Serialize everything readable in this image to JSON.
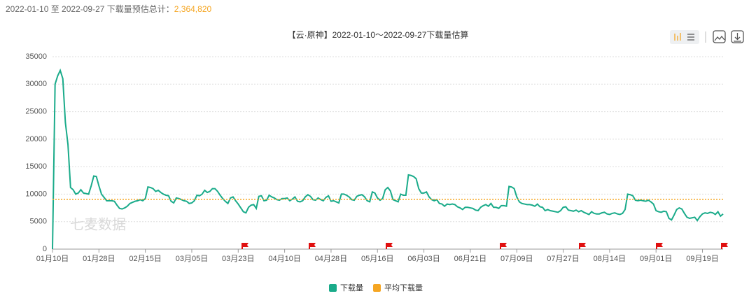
{
  "header": {
    "range_text": "2022-01-10 至 2022-09-27 下载量预估总计：",
    "total": "2,364,820"
  },
  "chart_data": {
    "type": "line",
    "title": "【云·原神】2022-01-10～2022-09-27下载量估算",
    "watermark": "七麦数据",
    "categories": [
      "01月10日",
      null,
      null,
      null,
      null,
      null,
      null,
      null,
      null,
      null,
      null,
      null,
      null,
      null,
      null,
      null,
      null,
      null,
      "01月28日",
      null,
      null,
      null,
      null,
      null,
      null,
      null,
      null,
      null,
      null,
      null,
      null,
      null,
      null,
      null,
      null,
      null,
      "02月15日",
      null,
      null,
      null,
      null,
      null,
      null,
      null,
      null,
      null,
      null,
      null,
      null,
      null,
      null,
      null,
      null,
      null,
      "03月05日",
      null,
      null,
      null,
      null,
      null,
      null,
      null,
      null,
      null,
      null,
      null,
      null,
      null,
      null,
      null,
      null,
      null,
      "03月23日",
      null,
      null,
      null,
      null,
      null,
      null,
      null,
      null,
      null,
      null,
      null,
      null,
      null,
      null,
      null,
      null,
      null,
      "04月10日",
      null,
      null,
      null,
      null,
      null,
      null,
      null,
      null,
      null,
      null,
      null,
      null,
      null,
      null,
      null,
      null,
      null,
      "04月28日",
      null,
      null,
      null,
      null,
      null,
      null,
      null,
      null,
      null,
      null,
      null,
      null,
      null,
      null,
      null,
      null,
      null,
      "05月16日",
      null,
      null,
      null,
      null,
      null,
      null,
      null,
      null,
      null,
      null,
      null,
      null,
      null,
      null,
      null,
      null,
      null,
      "06月03日",
      null,
      null,
      null,
      null,
      null,
      null,
      null,
      null,
      null,
      null,
      null,
      null,
      null,
      null,
      null,
      null,
      null,
      "06月21日",
      null,
      null,
      null,
      null,
      null,
      null,
      null,
      null,
      null,
      null,
      null,
      null,
      null,
      null,
      null,
      null,
      null,
      "07月09日",
      null,
      null,
      null,
      null,
      null,
      null,
      null,
      null,
      null,
      null,
      null,
      null,
      null,
      null,
      null,
      null,
      null,
      "07月27日",
      null,
      null,
      null,
      null,
      null,
      null,
      null,
      null,
      null,
      null,
      null,
      null,
      null,
      null,
      null,
      null,
      null,
      "08月14日",
      null,
      null,
      null,
      null,
      null,
      null,
      null,
      null,
      null,
      null,
      null,
      null,
      null,
      null,
      null,
      null,
      null,
      "09月01日",
      null,
      null,
      null,
      null,
      null,
      null,
      null,
      null,
      null,
      null,
      null,
      null,
      null,
      null,
      null,
      null,
      null,
      "09月19日",
      null,
      null,
      null,
      null,
      null,
      null,
      null,
      null
    ],
    "series": [
      {
        "name": "下载量",
        "color": "#1aab8a",
        "values": [
          0,
          30000,
          31500,
          32500,
          31000,
          23000,
          19000,
          11200,
          10800,
          10000,
          10200,
          10800,
          10200,
          10100,
          10000,
          11500,
          13300,
          13200,
          11500,
          10000,
          9400,
          8800,
          8800,
          8800,
          8700,
          8000,
          7400,
          7300,
          7500,
          7800,
          8300,
          8500,
          8700,
          8800,
          9000,
          8800,
          9200,
          11300,
          11200,
          11000,
          10500,
          10700,
          10300,
          10000,
          9800,
          9700,
          8700,
          8400,
          9300,
          9200,
          9000,
          8800,
          8700,
          8300,
          8400,
          8800,
          9800,
          9700,
          10000,
          10700,
          10300,
          10500,
          11000,
          11000,
          10500,
          9800,
          9200,
          8700,
          8300,
          9300,
          9500,
          8800,
          8200,
          7500,
          6800,
          6600,
          7600,
          8000,
          8100,
          7400,
          9600,
          9700,
          8800,
          8900,
          9800,
          9500,
          9300,
          9000,
          8900,
          9200,
          9200,
          9300,
          8800,
          9100,
          9500,
          8700,
          8600,
          8800,
          9500,
          9900,
          9600,
          9000,
          8900,
          9300,
          9000,
          8800,
          9400,
          9700,
          8700,
          8800,
          8600,
          8400,
          10000,
          10000,
          9800,
          9500,
          9000,
          8900,
          9600,
          9800,
          9900,
          9500,
          8800,
          8600,
          10400,
          10200,
          9300,
          8900,
          9200,
          10800,
          11200,
          10600,
          9000,
          8800,
          8600,
          10000,
          9800,
          9800,
          13500,
          13400,
          13200,
          12800,
          11000,
          10200,
          10200,
          10400,
          9500,
          9000,
          8800,
          9000,
          8300,
          8200,
          7800,
          8200,
          8100,
          8200,
          8100,
          7700,
          7500,
          7200,
          7600,
          7600,
          7500,
          7400,
          7100,
          7000,
          7600,
          7900,
          8100,
          7800,
          8300,
          7600,
          7600,
          7400,
          7900,
          7900,
          7800,
          11400,
          11300,
          11000,
          9500,
          8600,
          8300,
          8200,
          8100,
          8100,
          8000,
          7800,
          8200,
          7700,
          7600,
          7000,
          7200,
          7000,
          6900,
          6800,
          6700,
          7000,
          7600,
          7700,
          7100,
          7000,
          6900,
          7100,
          6800,
          7000,
          6700,
          6500,
          6300,
          6800,
          6500,
          6400,
          6400,
          6600,
          6700,
          6400,
          6300,
          6500,
          6600,
          6400,
          6300,
          6500,
          7200,
          10000,
          9900,
          9700,
          8900,
          8800,
          8900,
          8800,
          8700,
          8900,
          8600,
          8200,
          7000,
          6800,
          6700,
          6900,
          6800,
          5600,
          5300,
          6200,
          7200,
          7500,
          7300,
          6500,
          5800,
          5600,
          5700,
          5800,
          5200,
          5900,
          6400,
          6600,
          6500,
          6700,
          6600,
          6300,
          6800,
          6000,
          6400
        ]
      },
      {
        "name": "平均下载量",
        "color": "#f5a623",
        "value": 9060,
        "dashed": true
      }
    ],
    "ylim": [
      0,
      35000
    ],
    "yticks": [
      0,
      5000,
      10000,
      15000,
      20000,
      25000,
      30000,
      35000
    ],
    "grid": true,
    "legend": "bottom"
  }
}
